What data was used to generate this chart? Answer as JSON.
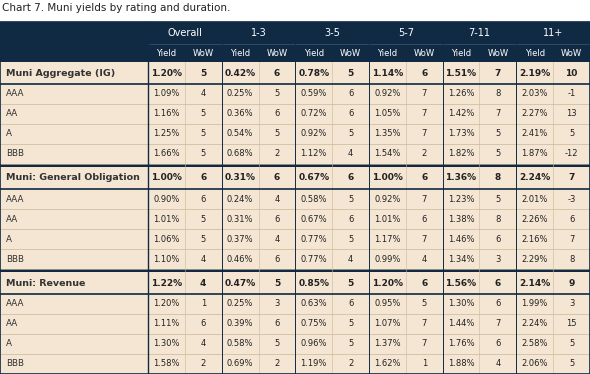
{
  "title": "Chart 7. Muni yields by rating and duration.",
  "header_bg": "#102a43",
  "header_text": "#ffffff",
  "header_group_labels": [
    "Overall",
    "1-3",
    "3-5",
    "5-7",
    "7-11",
    "11+"
  ],
  "subheader": [
    "Yield",
    "WoW",
    "Yield",
    "WoW",
    "Yield",
    "WoW",
    "Yield",
    "WoW",
    "Yield",
    "WoW",
    "Yield",
    "WoW"
  ],
  "cream_bg": "#f5e6d3",
  "white_bg": "#ffffff",
  "border_dark": "#102a43",
  "border_light": "#c8b89a",
  "title_color": "#222222",
  "data_text_color": "#222222",
  "label_text_color": "#333333",
  "rows": [
    {
      "label": "Muni Aggregate (IG)",
      "bold": true,
      "section_header": true,
      "section": 0,
      "values": [
        "1.20%",
        "5",
        "0.42%",
        "6",
        "0.78%",
        "5",
        "1.14%",
        "6",
        "1.51%",
        "7",
        "2.19%",
        "10"
      ]
    },
    {
      "label": "AAA",
      "bold": false,
      "section_header": false,
      "section": 0,
      "values": [
        "1.09%",
        "4",
        "0.25%",
        "5",
        "0.59%",
        "6",
        "0.92%",
        "7",
        "1.26%",
        "8",
        "2.03%",
        "-1"
      ]
    },
    {
      "label": "AA",
      "bold": false,
      "section_header": false,
      "section": 0,
      "values": [
        "1.16%",
        "5",
        "0.36%",
        "6",
        "0.72%",
        "6",
        "1.05%",
        "7",
        "1.42%",
        "7",
        "2.27%",
        "13"
      ]
    },
    {
      "label": "A",
      "bold": false,
      "section_header": false,
      "section": 0,
      "values": [
        "1.25%",
        "5",
        "0.54%",
        "5",
        "0.92%",
        "5",
        "1.35%",
        "7",
        "1.73%",
        "5",
        "2.41%",
        "5"
      ]
    },
    {
      "label": "BBB",
      "bold": false,
      "section_header": false,
      "section": 0,
      "values": [
        "1.66%",
        "5",
        "0.68%",
        "2",
        "1.12%",
        "4",
        "1.54%",
        "2",
        "1.82%",
        "5",
        "1.87%",
        "-12"
      ]
    },
    {
      "label": "Muni: General Obligation",
      "bold": true,
      "section_header": true,
      "section": 1,
      "values": [
        "1.00%",
        "6",
        "0.31%",
        "6",
        "0.67%",
        "6",
        "1.00%",
        "6",
        "1.36%",
        "8",
        "2.24%",
        "7"
      ]
    },
    {
      "label": "AAA",
      "bold": false,
      "section_header": false,
      "section": 1,
      "values": [
        "0.90%",
        "6",
        "0.24%",
        "4",
        "0.58%",
        "5",
        "0.92%",
        "7",
        "1.23%",
        "5",
        "2.01%",
        "-3"
      ]
    },
    {
      "label": "AA",
      "bold": false,
      "section_header": false,
      "section": 1,
      "values": [
        "1.01%",
        "5",
        "0.31%",
        "6",
        "0.67%",
        "6",
        "1.01%",
        "6",
        "1.38%",
        "8",
        "2.26%",
        "6"
      ]
    },
    {
      "label": "A",
      "bold": false,
      "section_header": false,
      "section": 1,
      "values": [
        "1.06%",
        "5",
        "0.37%",
        "4",
        "0.77%",
        "5",
        "1.17%",
        "7",
        "1.46%",
        "6",
        "2.16%",
        "7"
      ]
    },
    {
      "label": "BBB",
      "bold": false,
      "section_header": false,
      "section": 1,
      "values": [
        "1.10%",
        "4",
        "0.46%",
        "6",
        "0.77%",
        "4",
        "0.99%",
        "4",
        "1.34%",
        "3",
        "2.29%",
        "8"
      ]
    },
    {
      "label": "Muni: Revenue",
      "bold": true,
      "section_header": true,
      "section": 2,
      "values": [
        "1.22%",
        "4",
        "0.47%",
        "5",
        "0.85%",
        "5",
        "1.20%",
        "6",
        "1.56%",
        "6",
        "2.14%",
        "9"
      ]
    },
    {
      "label": "AAA",
      "bold": false,
      "section_header": false,
      "section": 2,
      "values": [
        "1.20%",
        "1",
        "0.25%",
        "3",
        "0.63%",
        "6",
        "0.95%",
        "5",
        "1.30%",
        "6",
        "1.99%",
        "3"
      ]
    },
    {
      "label": "AA",
      "bold": false,
      "section_header": false,
      "section": 2,
      "values": [
        "1.11%",
        "6",
        "0.39%",
        "6",
        "0.75%",
        "5",
        "1.07%",
        "7",
        "1.44%",
        "7",
        "2.24%",
        "15"
      ]
    },
    {
      "label": "A",
      "bold": false,
      "section_header": false,
      "section": 2,
      "values": [
        "1.30%",
        "4",
        "0.58%",
        "5",
        "0.96%",
        "5",
        "1.37%",
        "7",
        "1.76%",
        "6",
        "2.58%",
        "5"
      ]
    },
    {
      "label": "BBB",
      "bold": false,
      "section_header": false,
      "section": 2,
      "values": [
        "1.58%",
        "2",
        "0.69%",
        "2",
        "1.19%",
        "2",
        "1.62%",
        "1",
        "1.88%",
        "4",
        "2.06%",
        "5"
      ]
    }
  ],
  "figsize": [
    5.9,
    3.74
  ],
  "dpi": 100
}
